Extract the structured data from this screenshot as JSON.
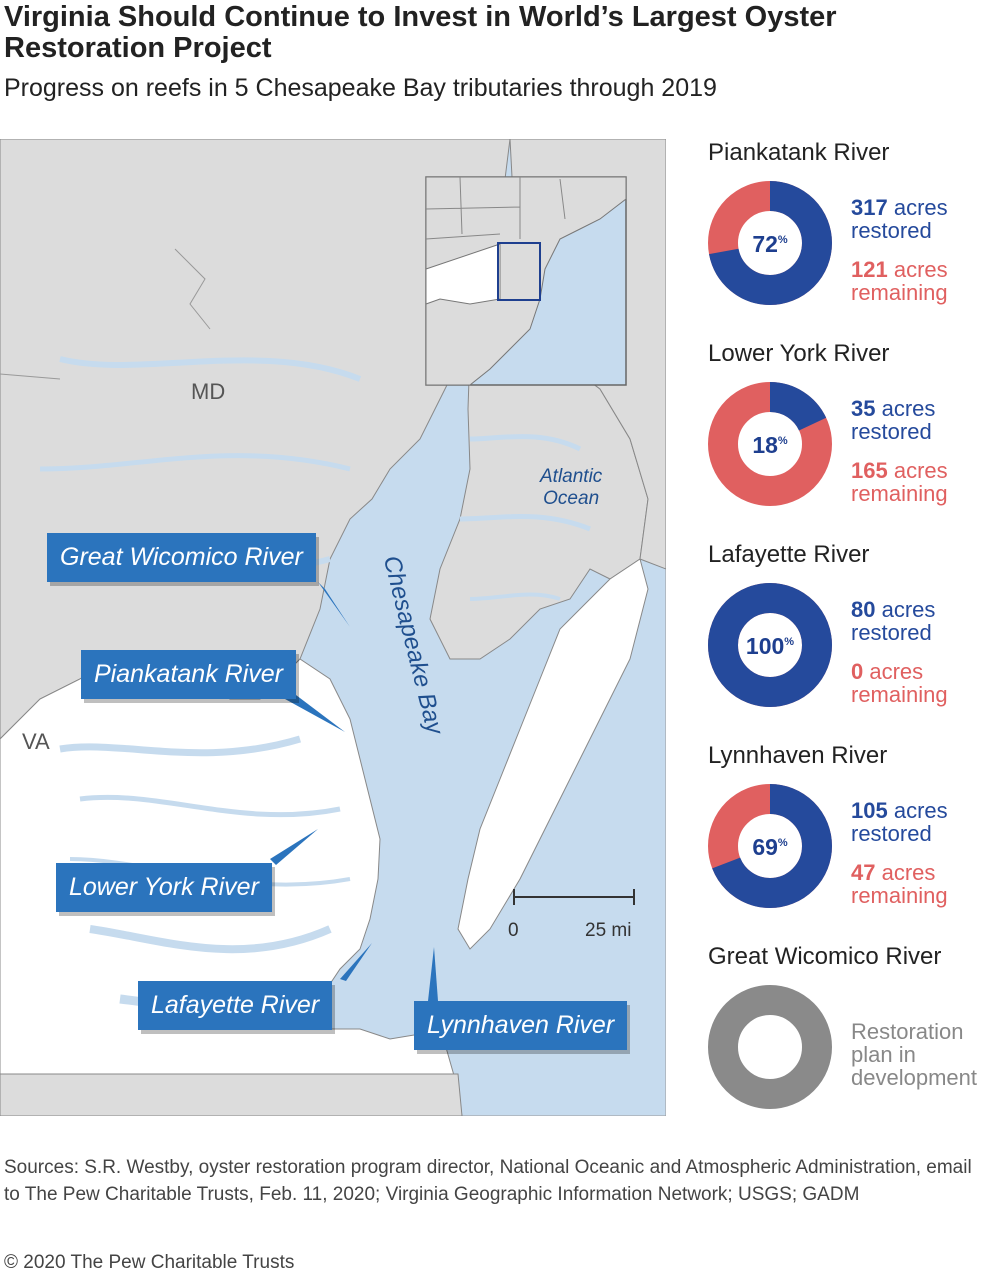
{
  "title": "Virginia Should Continue to Invest in World’s Largest Oyster Restoration Project",
  "subtitle": "Progress on reefs in 5 Chesapeake Bay tributaries through 2019",
  "map": {
    "state_labels": [
      "MD",
      "VA"
    ],
    "bay_label": "Chesapeake Bay",
    "ocean_label_line1": "Atlantic",
    "ocean_label_line2": "Ocean",
    "scale_zero": "0",
    "scale_end": "25 mi",
    "callouts": [
      "Great Wicomico River",
      "Piankatank River",
      "Lower York River",
      "Lafayette River",
      "Lynnhaven River"
    ],
    "colors": {
      "water": "#c6dbee",
      "land": "#dcdcdc",
      "virginia": "#ffffff",
      "callout": "#2b74bd"
    }
  },
  "rivers": [
    {
      "name": "Piankatank River",
      "percent": 72,
      "pct_label": "72",
      "pct_sign": "%",
      "restored_num": "317",
      "restored_unit": "acres",
      "restored_word": "restored",
      "remaining_num": "121",
      "remaining_unit": "acres",
      "remaining_word": "remaining"
    },
    {
      "name": "Lower York River",
      "percent": 18,
      "pct_label": "18",
      "pct_sign": "%",
      "restored_num": "35",
      "restored_unit": "acres",
      "restored_word": "restored",
      "remaining_num": "165",
      "remaining_unit": "acres",
      "remaining_word": "remaining"
    },
    {
      "name": "Lafayette River",
      "percent": 100,
      "pct_label": "100",
      "pct_sign": "%",
      "restored_num": "80",
      "restored_unit": "acres",
      "restored_word": "restored",
      "remaining_num": "0",
      "remaining_unit": "acres",
      "remaining_word": "remaining"
    },
    {
      "name": "Lynnhaven River",
      "percent": 69,
      "pct_label": "69",
      "pct_sign": "%",
      "restored_num": "105",
      "restored_unit": "acres",
      "restored_word": "restored",
      "remaining_num": "47",
      "remaining_unit": "acres",
      "remaining_word": "remaining"
    }
  ],
  "wicomico": {
    "name": "Great Wicomico River",
    "line1": "Restoration",
    "line2": "plan in",
    "line3": "development"
  },
  "colors": {
    "restored": "#254a9c",
    "remaining": "#e06060",
    "pending": "#8a8a8a"
  },
  "sources": "Sources: S.R. Westby, oyster restoration program director, National Oceanic and Atmospheric Administration, email to The Pew Charitable Trusts, Feb. 11, 2020; Virginia Geographic Information Network; USGS; GADM",
  "copyright": "© 2020 The Pew Charitable Trusts"
}
